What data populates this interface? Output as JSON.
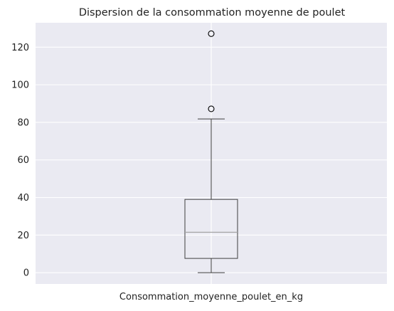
{
  "chart_data": {
    "type": "box",
    "title": "Dispersion de la consommation moyenne de poulet",
    "xlabel": "",
    "ylabel": "",
    "categories": [
      "Consommation_moyenne_poulet_en_kg"
    ],
    "ylim": [
      -6,
      133
    ],
    "yticks": [
      0,
      20,
      40,
      60,
      80,
      100,
      120
    ],
    "grid": true,
    "box": {
      "whisker_low": 0,
      "q1": 7.6,
      "median": 21.5,
      "q3": 39.0,
      "whisker_high": 81.8,
      "outliers": [
        87.2,
        127.2
      ]
    },
    "colors": {
      "background": "#eaeaf2",
      "grid": "#ffffff",
      "box": "#3f3f3f",
      "median": "#a6a6a6"
    }
  }
}
